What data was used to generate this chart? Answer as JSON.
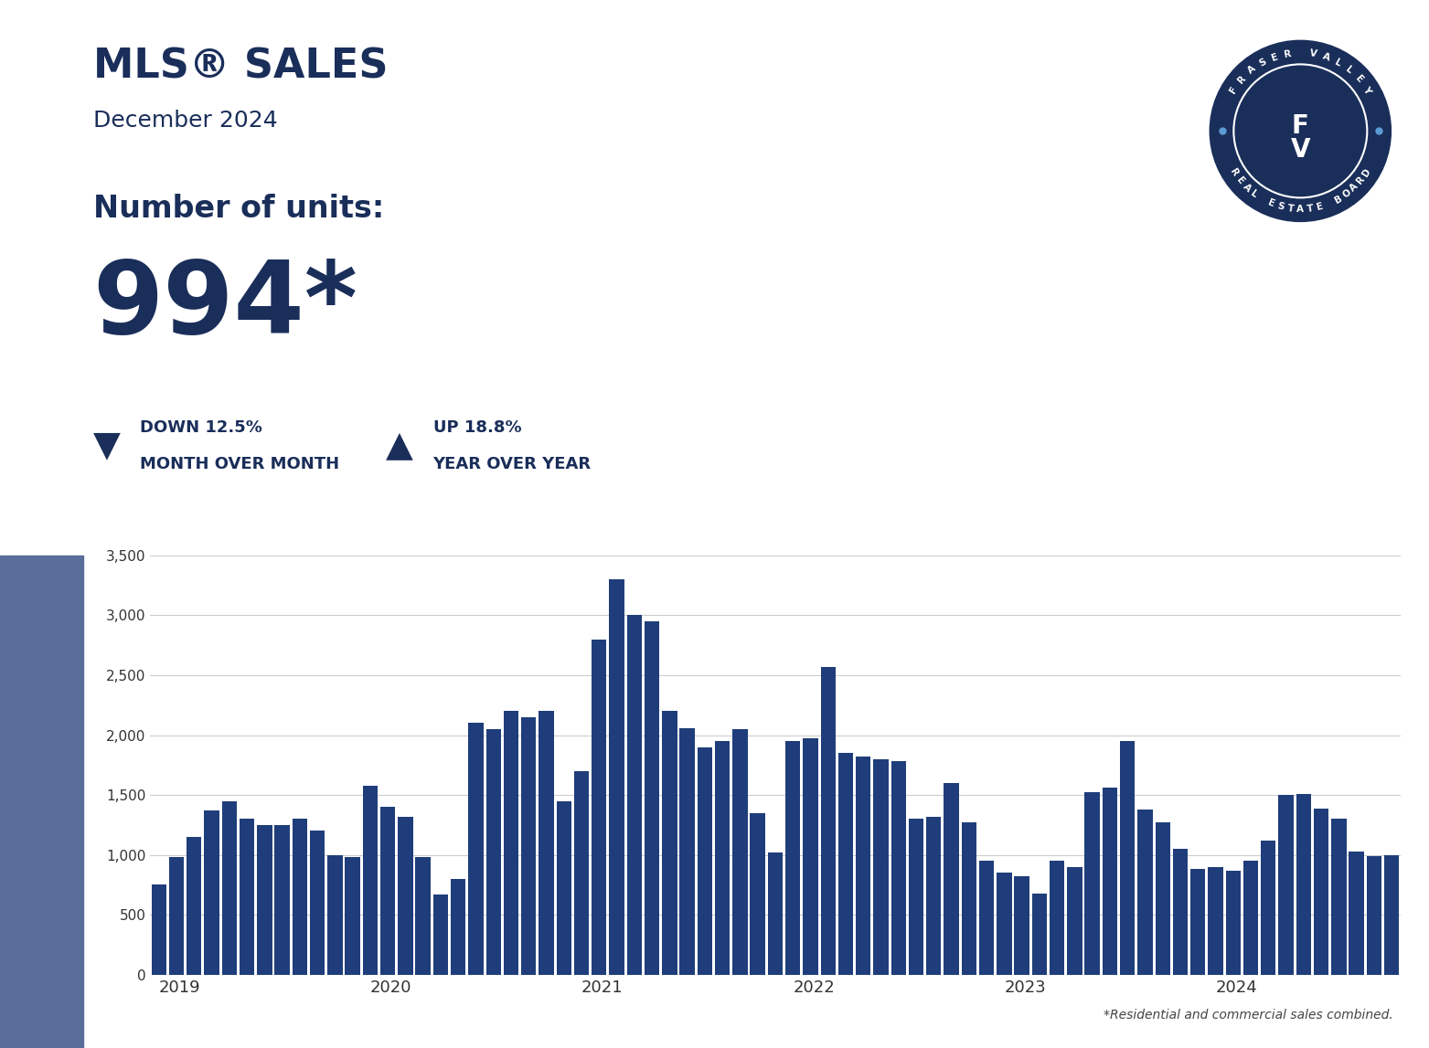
{
  "title": "MLS® SALES",
  "subtitle": "December 2024",
  "units_label": "Number of units:",
  "units_value": "994*",
  "down_pct": "DOWN 12.5%",
  "down_label": "MONTH OVER MONTH",
  "up_pct": "UP 18.8%",
  "up_label": "YEAR OVER YEAR",
  "footnote": "*Residential and commercial sales combined.",
  "bar_color": "#1f3d7a",
  "sidebar_color": "#5a6e9c",
  "background_color": "#ffffff",
  "text_color_dark": "#1a2e5a",
  "grid_color": "#cccccc",
  "ylim": [
    0,
    3500
  ],
  "yticks": [
    0,
    500,
    1000,
    1500,
    2000,
    2500,
    3000,
    3500
  ],
  "ytick_labels": [
    "0",
    "500",
    "1,000",
    "1,500",
    "2,000",
    "2,500",
    "3,000",
    "3,500"
  ],
  "year_labels": [
    "2019",
    "2020",
    "2021",
    "2022",
    "2023",
    "2024"
  ],
  "values": [
    750,
    980,
    1150,
    1370,
    1450,
    1300,
    1250,
    1250,
    1300,
    1200,
    1000,
    980,
    1580,
    1400,
    1320,
    980,
    670,
    800,
    2100,
    2050,
    2200,
    2150,
    2200,
    1450,
    1700,
    2800,
    3300,
    3000,
    2950,
    2200,
    2060,
    1900,
    1950,
    2050,
    1350,
    1020,
    1950,
    1970,
    2570,
    1850,
    1820,
    1800,
    1780,
    1300,
    1320,
    1600,
    1270,
    950,
    850,
    820,
    680,
    950,
    900,
    1520,
    1560,
    1950,
    1380,
    1270,
    1050,
    880,
    900,
    870,
    950,
    1120,
    1500,
    1510,
    1390,
    1300,
    1030,
    990,
    994
  ],
  "logo_top_text": "FRASER VALLEY",
  "logo_bot_text": "REAL ESTATE BOARD",
  "logo_dot_color": "#5b9bd5"
}
